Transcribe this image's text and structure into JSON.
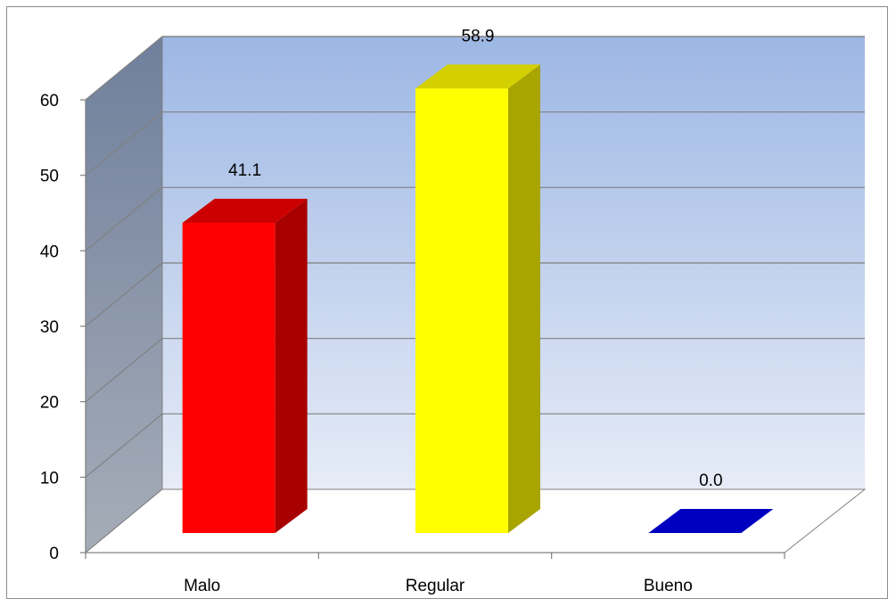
{
  "chart_data": {
    "type": "bar",
    "title": "",
    "xlabel": "",
    "ylabel": "",
    "categories": [
      "Malo",
      "Regular",
      "Bueno"
    ],
    "values": [
      41.1,
      58.9,
      0.0
    ],
    "value_labels": [
      "41.1",
      "58.9",
      "0.0"
    ],
    "y_ticks": [
      "0",
      "10",
      "20",
      "30",
      "40",
      "50",
      "60"
    ],
    "ylim": [
      0,
      60
    ],
    "grid": true,
    "legend": "none",
    "style": "3d-column",
    "colors": {
      "bars": [
        "#ff0000",
        "#ffff00",
        "#0000c0"
      ],
      "bar_sides": [
        "#a80000",
        "#a8a400",
        "#00007a"
      ],
      "bar_tops": [
        "#cc0000",
        "#d4d000",
        "#0a0aa8"
      ],
      "back_wall_top": "#9db7e4",
      "back_wall_bottom": "#e6ecf7",
      "side_wall_top": "#6f7f9c",
      "side_wall_bottom": "#a6adb8",
      "gridline": "#808080"
    }
  }
}
